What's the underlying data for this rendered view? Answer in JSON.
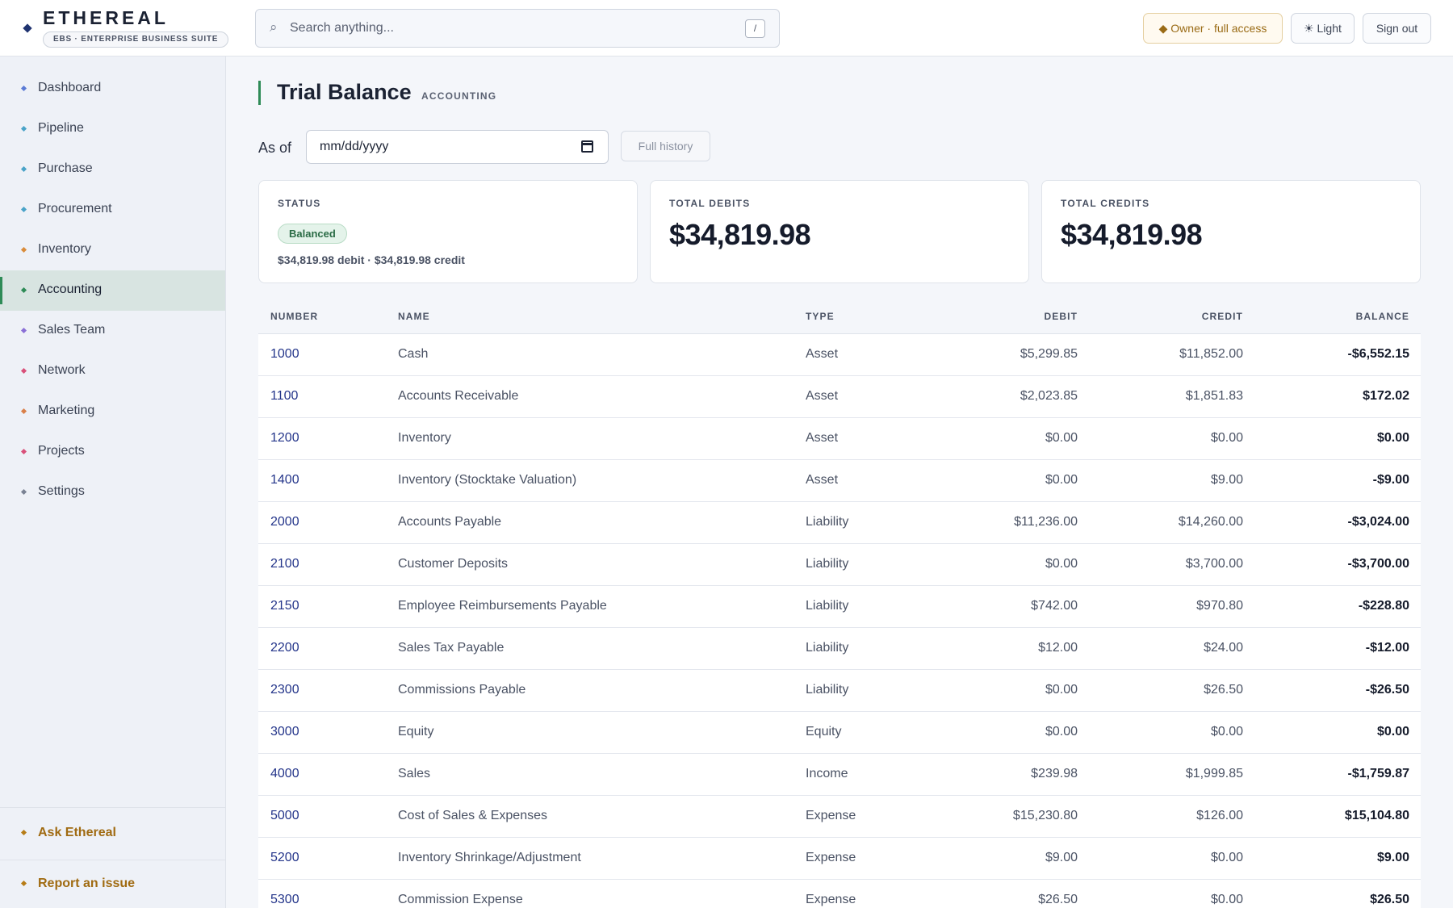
{
  "header": {
    "brand_name": "ETHEREAL",
    "brand_sub": "EBS · ENTERPRISE BUSINESS SUITE",
    "search_placeholder": "Search anything...",
    "search_shortcut": "/",
    "owner_label": "◆ Owner · full access",
    "theme_label": "☀ Light",
    "signout_label": "Sign out"
  },
  "sidebar": {
    "items": [
      {
        "label": "Dashboard",
        "color": "#5b7bd5"
      },
      {
        "label": "Pipeline",
        "color": "#4aa3c8"
      },
      {
        "label": "Purchase",
        "color": "#4aa3c8"
      },
      {
        "label": "Procurement",
        "color": "#4aa3c8"
      },
      {
        "label": "Inventory",
        "color": "#d98c3a"
      },
      {
        "label": "Accounting",
        "color": "#2e8b57"
      },
      {
        "label": "Sales Team",
        "color": "#8a6fd6"
      },
      {
        "label": "Network",
        "color": "#d9507a"
      },
      {
        "label": "Marketing",
        "color": "#d9804a"
      },
      {
        "label": "Projects",
        "color": "#d9507a"
      },
      {
        "label": "Settings",
        "color": "#7a8294"
      }
    ],
    "active": "Accounting",
    "ask_label": "Ask Ethereal",
    "report_label": "Report an issue"
  },
  "page": {
    "title": "Trial Balance",
    "tag": "ACCOUNTING",
    "asof_label": "As of",
    "date_placeholder": "mm/dd/yyyy",
    "full_history_label": "Full history"
  },
  "cards": {
    "status_label": "STATUS",
    "status_badge": "Balanced",
    "status_sub": "$34,819.98 debit · $34,819.98 credit",
    "debits_label": "TOTAL DEBITS",
    "debits_value": "$34,819.98",
    "credits_label": "TOTAL CREDITS",
    "credits_value": "$34,819.98"
  },
  "table": {
    "columns": [
      "NUMBER",
      "NAME",
      "TYPE",
      "DEBIT",
      "CREDIT",
      "BALANCE"
    ],
    "rows": [
      {
        "number": "1000",
        "name": "Cash",
        "type": "Asset",
        "debit": "$5,299.85",
        "credit": "$11,852.00",
        "balance": "-$6,552.15"
      },
      {
        "number": "1100",
        "name": "Accounts Receivable",
        "type": "Asset",
        "debit": "$2,023.85",
        "credit": "$1,851.83",
        "balance": "$172.02"
      },
      {
        "number": "1200",
        "name": "Inventory",
        "type": "Asset",
        "debit": "$0.00",
        "credit": "$0.00",
        "balance": "$0.00"
      },
      {
        "number": "1400",
        "name": "Inventory (Stocktake Valuation)",
        "type": "Asset",
        "debit": "$0.00",
        "credit": "$9.00",
        "balance": "-$9.00"
      },
      {
        "number": "2000",
        "name": "Accounts Payable",
        "type": "Liability",
        "debit": "$11,236.00",
        "credit": "$14,260.00",
        "balance": "-$3,024.00"
      },
      {
        "number": "2100",
        "name": "Customer Deposits",
        "type": "Liability",
        "debit": "$0.00",
        "credit": "$3,700.00",
        "balance": "-$3,700.00"
      },
      {
        "number": "2150",
        "name": "Employee Reimbursements Payable",
        "type": "Liability",
        "debit": "$742.00",
        "credit": "$970.80",
        "balance": "-$228.80"
      },
      {
        "number": "2200",
        "name": "Sales Tax Payable",
        "type": "Liability",
        "debit": "$12.00",
        "credit": "$24.00",
        "balance": "-$12.00"
      },
      {
        "number": "2300",
        "name": "Commissions Payable",
        "type": "Liability",
        "debit": "$0.00",
        "credit": "$26.50",
        "balance": "-$26.50"
      },
      {
        "number": "3000",
        "name": "Equity",
        "type": "Equity",
        "debit": "$0.00",
        "credit": "$0.00",
        "balance": "$0.00"
      },
      {
        "number": "4000",
        "name": "Sales",
        "type": "Income",
        "debit": "$239.98",
        "credit": "$1,999.85",
        "balance": "-$1,759.87"
      },
      {
        "number": "5000",
        "name": "Cost of Sales & Expenses",
        "type": "Expense",
        "debit": "$15,230.80",
        "credit": "$126.00",
        "balance": "$15,104.80"
      },
      {
        "number": "5200",
        "name": "Inventory Shrinkage/Adjustment",
        "type": "Expense",
        "debit": "$9.00",
        "credit": "$0.00",
        "balance": "$9.00"
      },
      {
        "number": "5300",
        "name": "Commission Expense",
        "type": "Expense",
        "debit": "$26.50",
        "credit": "$0.00",
        "balance": "$26.50"
      }
    ]
  }
}
